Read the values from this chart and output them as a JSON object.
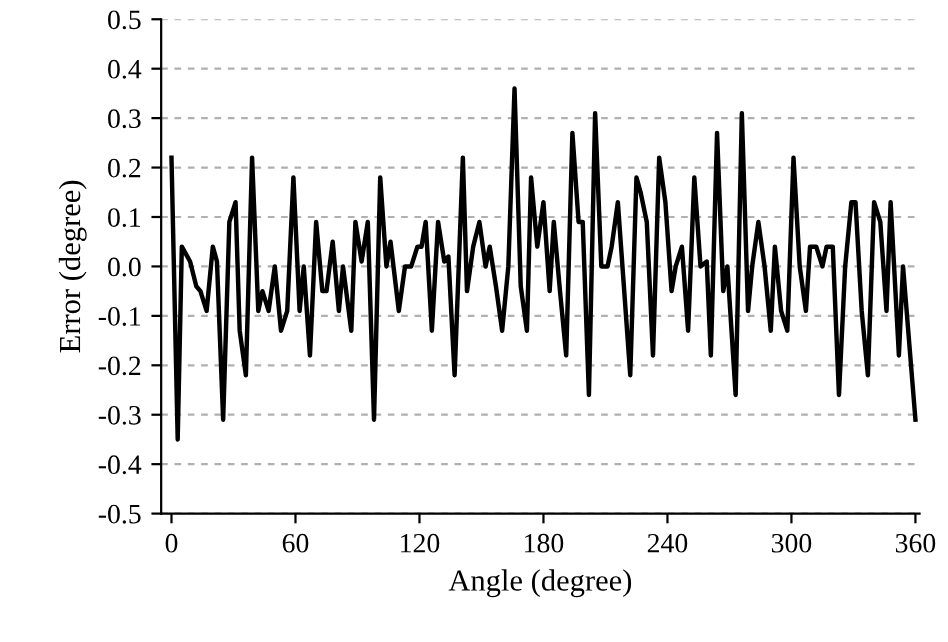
{
  "chart_data": {
    "type": "line",
    "xlabel": "Angle (degree)",
    "ylabel": "Error (degree)",
    "series": [
      {
        "color": "#000000",
        "x": [
          0,
          3,
          5,
          9,
          12,
          14,
          17,
          20,
          22,
          25,
          28,
          31,
          33,
          36,
          39,
          42,
          44,
          47,
          50,
          53,
          56,
          59,
          62,
          64,
          67,
          70,
          73,
          75,
          78,
          81,
          83,
          87,
          89,
          92,
          95,
          98,
          101,
          104,
          106,
          110,
          113,
          116,
          119,
          121,
          123,
          126,
          129,
          132,
          134,
          137,
          141,
          143,
          146,
          149,
          152,
          154,
          157,
          160,
          163,
          166,
          169,
          172,
          174,
          177,
          180,
          183,
          185,
          188,
          191,
          194,
          197,
          199,
          202,
          205,
          208,
          211,
          213,
          216,
          222,
          225,
          227,
          230,
          233,
          236,
          239,
          242,
          244,
          247,
          250,
          253,
          256,
          259,
          261,
          264,
          267,
          269,
          273,
          276,
          279,
          281,
          284,
          287,
          290,
          292,
          295,
          298,
          301,
          304,
          307,
          309,
          312,
          315,
          317,
          320,
          323,
          326,
          329,
          331,
          334,
          337,
          340,
          343,
          346,
          348,
          352,
          354,
          360
        ],
        "values": [
          0.22,
          -0.35,
          0.04,
          0.01,
          -0.04,
          -0.05,
          -0.09,
          0.04,
          0.01,
          -0.31,
          0.09,
          0.13,
          -0.13,
          -0.22,
          0.22,
          -0.09,
          -0.05,
          -0.09,
          0,
          -0.13,
          -0.09,
          0.18,
          -0.09,
          0,
          -0.18,
          0.09,
          -0.05,
          -0.05,
          0.05,
          -0.09,
          0,
          -0.13,
          0.09,
          0.01,
          0.09,
          -0.31,
          0.18,
          0,
          0.05,
          -0.09,
          0,
          0,
          0.04,
          0.04,
          0.09,
          -0.13,
          0.09,
          0.01,
          0.02,
          -0.22,
          0.22,
          -0.05,
          0.04,
          0.09,
          0,
          0.04,
          -0.04,
          -0.13,
          0,
          0.36,
          -0.04,
          -0.13,
          0.18,
          0.04,
          0.13,
          -0.05,
          0.09,
          -0.05,
          -0.18,
          0.27,
          0.09,
          0.09,
          -0.26,
          0.31,
          0,
          0,
          0.04,
          0.13,
          -0.22,
          0.18,
          0.15,
          0.09,
          -0.18,
          0.22,
          0.13,
          -0.05,
          0,
          0.04,
          -0.13,
          0.18,
          0,
          0.01,
          -0.18,
          0.27,
          -0.05,
          0,
          -0.26,
          0.31,
          -0.09,
          0,
          0.09,
          0,
          -0.13,
          0.04,
          -0.09,
          -0.13,
          0.22,
          0,
          -0.09,
          0.04,
          0.04,
          0,
          0.04,
          0.04,
          -0.26,
          0,
          0.13,
          0.13,
          -0.09,
          -0.22,
          0.13,
          0.09,
          -0.09,
          0.13,
          -0.18,
          0,
          -0.31
        ]
      }
    ],
    "xlim": [
      -5,
      362
    ],
    "xticks": [
      0,
      60,
      120,
      180,
      240,
      300,
      360
    ],
    "ylim": [
      -0.5,
      0.5
    ],
    "yticks": [
      -0.5,
      -0.4,
      -0.3,
      -0.2,
      -0.1,
      {
        "value": 0,
        "label": "0.0"
      },
      0.1,
      0.2,
      0.3,
      0.4,
      0.5
    ],
    "grid": "y",
    "legend": false,
    "marker": "none",
    "line_style": "solid"
  }
}
